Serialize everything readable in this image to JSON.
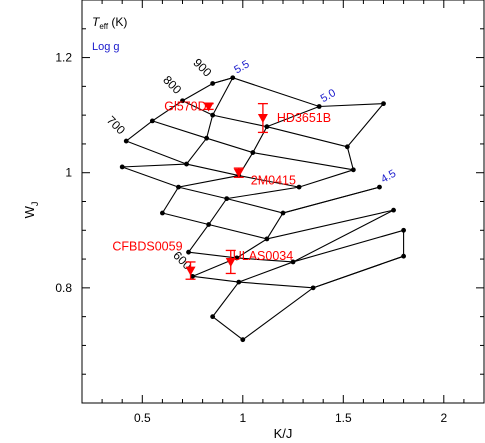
{
  "chart_data": {
    "type": "scatter",
    "xlabel": "K/J",
    "ylabel": "W",
    "ylabel_sub": "J",
    "xlim": [
      0.2,
      2.2
    ],
    "ylim": [
      0.6,
      1.3
    ],
    "x_ticks": [
      0.5,
      1,
      1.5,
      2
    ],
    "x_tick_labels": [
      "0.5",
      "1",
      "1.5",
      "2"
    ],
    "y_ticks": [
      0.8,
      1.0,
      1.2
    ],
    "y_tick_labels": [
      "0.8",
      "1",
      "1.2"
    ],
    "legend": {
      "teff_main": "T",
      "teff_sub": "eff",
      "teff_unit": " (K)",
      "logg": "Log g"
    },
    "colors": {
      "grid_lines": "#000000",
      "logg_labels": "#1a1acc",
      "objects": "#ff0000"
    },
    "model_grid": {
      "rows": [
        {
          "teff": "900",
          "points": [
            [
              0.85,
              1.155
            ],
            [
              0.95,
              1.165
            ],
            [
              1.38,
              1.115
            ],
            [
              1.7,
              1.12
            ]
          ]
        },
        {
          "teff": "800",
          "points": [
            [
              0.7,
              1.125
            ],
            [
              0.85,
              1.1
            ],
            [
              1.12,
              1.08
            ],
            [
              1.52,
              1.045
            ]
          ]
        },
        {
          "teff": "",
          "points": [
            [
              0.55,
              1.09
            ],
            [
              0.82,
              1.06
            ],
            [
              1.05,
              1.035
            ],
            [
              1.55,
              1.005
            ]
          ]
        },
        {
          "teff": "700",
          "points": [
            [
              0.42,
              1.055
            ],
            [
              0.72,
              1.015
            ],
            [
              0.98,
              0.995
            ],
            [
              1.28,
              0.975
            ]
          ]
        },
        {
          "teff": "",
          "points": [
            [
              0.4,
              1.01
            ],
            [
              0.68,
              0.975
            ],
            [
              0.92,
              0.955
            ],
            [
              1.2,
              0.93
            ],
            [
              1.68,
              0.975
            ]
          ]
        },
        {
          "teff": "",
          "points": [
            [
              0.6,
              0.93
            ],
            [
              0.83,
              0.91
            ],
            [
              1.12,
              0.885
            ],
            [
              1.75,
              0.935
            ]
          ]
        },
        {
          "teff": "",
          "points": [
            [
              0.73,
              0.862
            ],
            [
              0.97,
              0.852
            ],
            [
              1.25,
              0.845
            ],
            [
              1.8,
              0.9
            ]
          ]
        },
        {
          "teff": "600",
          "points": [
            [
              0.75,
              0.82
            ],
            [
              0.98,
              0.81
            ],
            [
              1.35,
              0.8
            ],
            [
              1.8,
              0.855
            ]
          ]
        },
        {
          "teff": "",
          "points": [
            [
              0.85,
              0.75
            ],
            [
              1.0,
              0.71
            ]
          ]
        }
      ],
      "columns": [
        {
          "logg": "5.5",
          "points": [
            [
              0.42,
              1.055
            ],
            [
              0.55,
              1.09
            ],
            [
              0.7,
              1.125
            ],
            [
              0.85,
              1.155
            ],
            [
              0.95,
              1.165
            ]
          ]
        },
        {
          "logg": "",
          "points": [
            [
              0.4,
              1.01
            ],
            [
              0.72,
              1.015
            ],
            [
              0.82,
              1.06
            ],
            [
              0.85,
              1.1
            ],
            [
              0.95,
              1.165
            ]
          ]
        },
        {
          "logg": "5.0",
          "points": [
            [
              0.6,
              0.93
            ],
            [
              0.68,
              0.975
            ],
            [
              0.98,
              0.995
            ],
            [
              1.05,
              1.035
            ],
            [
              1.12,
              1.08
            ],
            [
              1.38,
              1.115
            ]
          ]
        },
        {
          "logg": "",
          "points": [
            [
              0.73,
              0.862
            ],
            [
              0.83,
              0.91
            ],
            [
              0.92,
              0.955
            ],
            [
              1.28,
              0.975
            ],
            [
              1.55,
              1.005
            ],
            [
              1.52,
              1.045
            ],
            [
              1.7,
              1.12
            ]
          ]
        },
        {
          "logg": "4.5",
          "points": [
            [
              0.75,
              0.82
            ],
            [
              0.97,
              0.852
            ],
            [
              1.12,
              0.885
            ],
            [
              1.2,
              0.93
            ],
            [
              1.68,
              0.975
            ]
          ]
        },
        {
          "logg": "",
          "points": [
            [
              0.85,
              0.75
            ],
            [
              0.98,
              0.81
            ],
            [
              1.25,
              0.845
            ],
            [
              1.75,
              0.935
            ]
          ]
        },
        {
          "logg": "",
          "points": [
            [
              1.0,
              0.71
            ],
            [
              1.35,
              0.8
            ],
            [
              1.8,
              0.855
            ],
            [
              1.8,
              0.9
            ]
          ]
        }
      ]
    },
    "objects": [
      {
        "name": "Gl570D",
        "x": 0.83,
        "y": 1.115,
        "yerr": 0.005
      },
      {
        "name": "HD3651B",
        "x": 1.1,
        "y": 1.095,
        "yerr": 0.025
      },
      {
        "name": "2M0415",
        "x": 0.98,
        "y": 1.0,
        "yerr": 0.008
      },
      {
        "name": "ULAS0034",
        "x": 0.94,
        "y": 0.845,
        "yerr": 0.02
      },
      {
        "name": "CFBDS0059",
        "x": 0.74,
        "y": 0.83,
        "yerr": 0.015
      }
    ]
  }
}
